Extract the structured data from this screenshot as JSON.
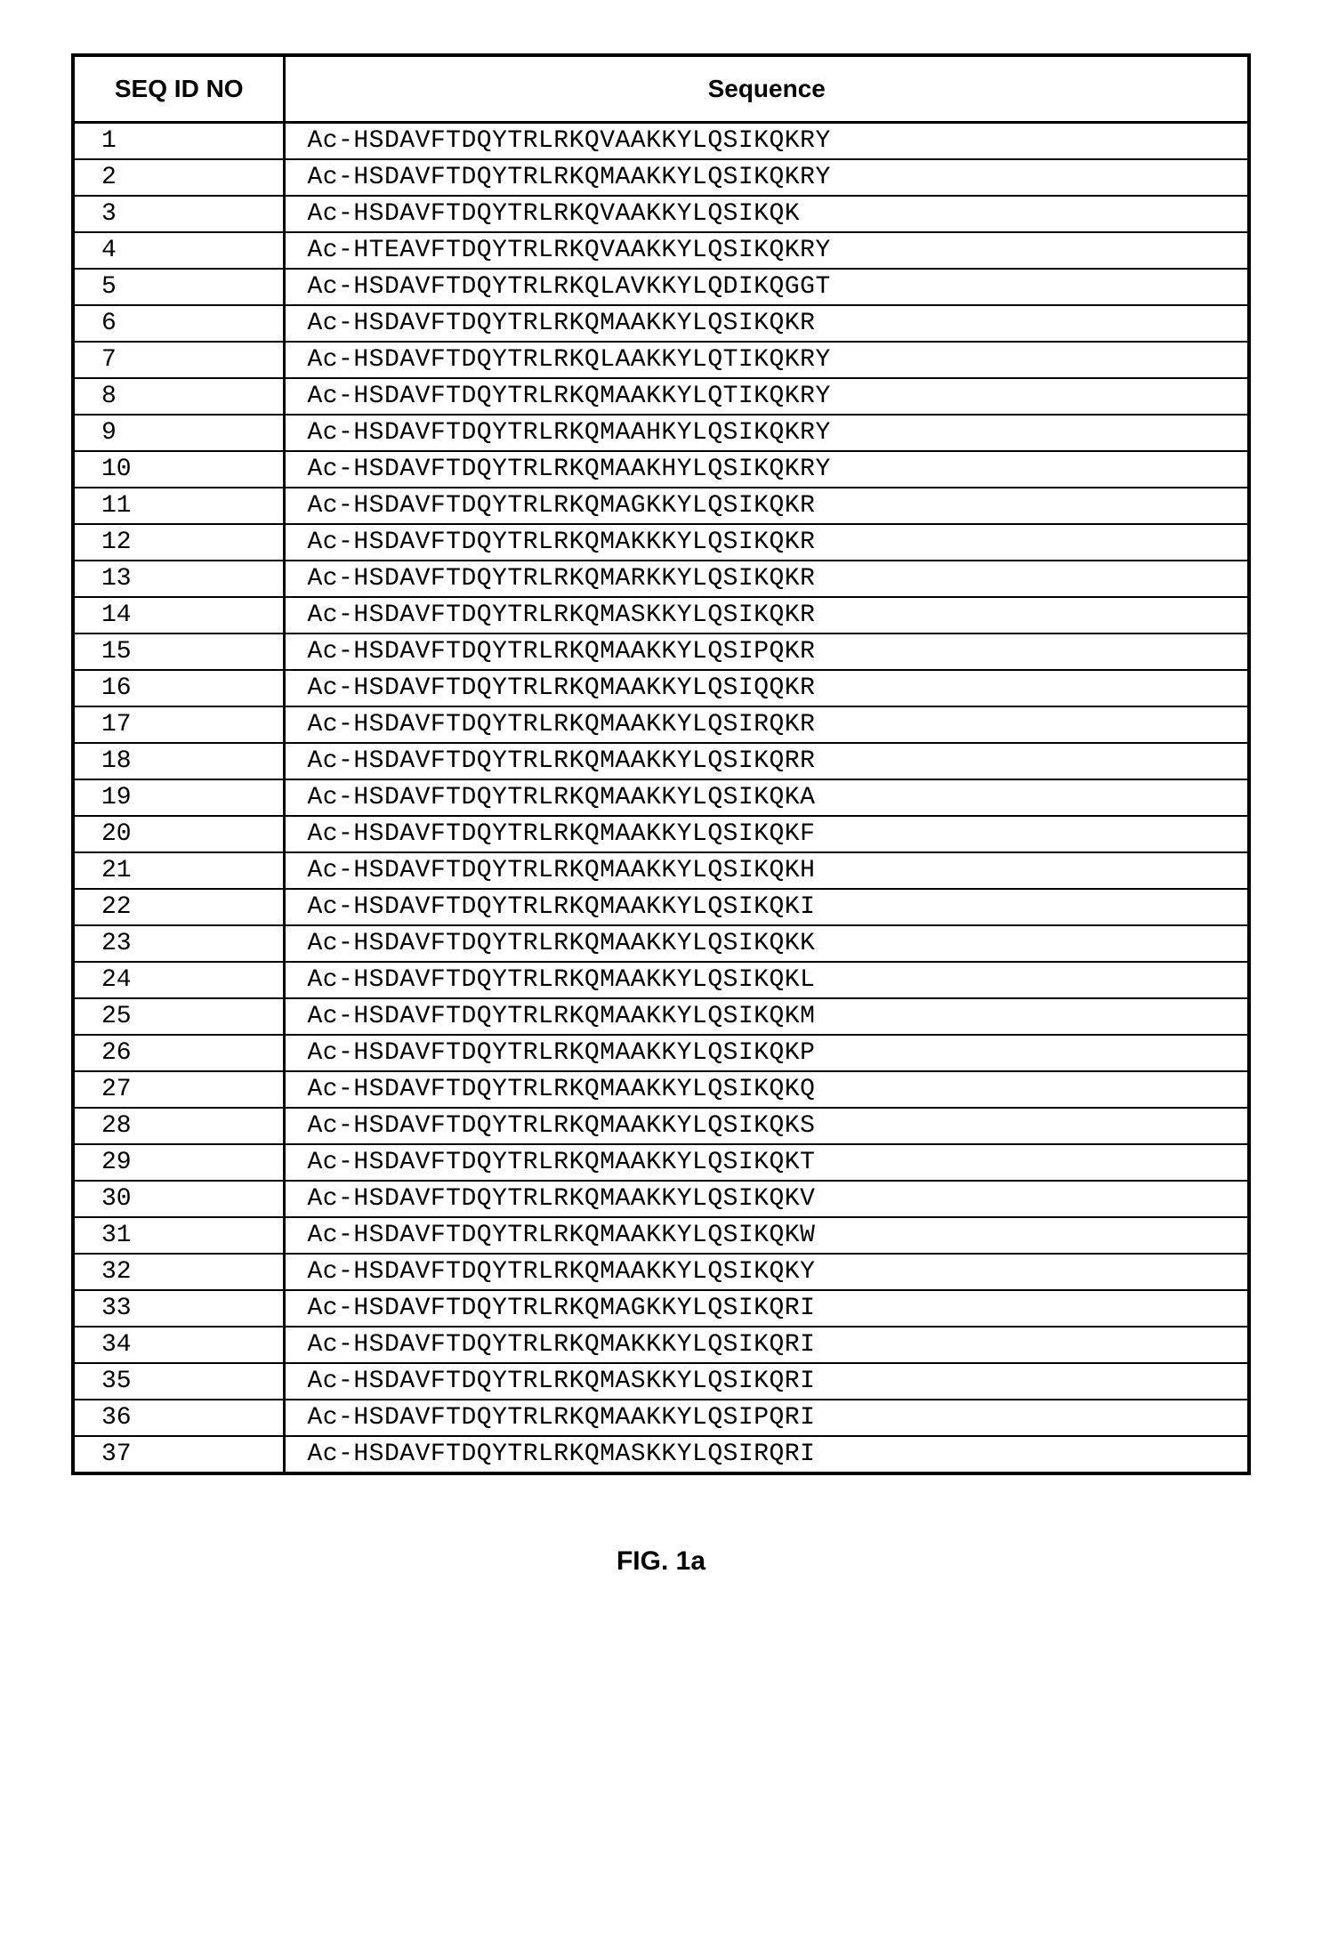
{
  "table": {
    "headers": {
      "seqid": "SEQ ID NO",
      "sequence": "Sequence"
    },
    "rows": [
      {
        "id": "1",
        "seq": "Ac-HSDAVFTDQYTRLRKQVAAKKYLQSIKQKRY"
      },
      {
        "id": "2",
        "seq": "Ac-HSDAVFTDQYTRLRKQMAAKKYLQSIKQKRY"
      },
      {
        "id": "3",
        "seq": "Ac-HSDAVFTDQYTRLRKQVAAKKYLQSIKQK"
      },
      {
        "id": "4",
        "seq": "Ac-HTEAVFTDQYTRLRKQVAAKKYLQSIKQKRY"
      },
      {
        "id": "5",
        "seq": "Ac-HSDAVFTDQYTRLRKQLAVKKYLQDIKQGGT"
      },
      {
        "id": "6",
        "seq": "Ac-HSDAVFTDQYTRLRKQMAAKKYLQSIKQKR"
      },
      {
        "id": "7",
        "seq": "Ac-HSDAVFTDQYTRLRKQLAAKKYLQTIKQKRY"
      },
      {
        "id": "8",
        "seq": "Ac-HSDAVFTDQYTRLRKQMAAKKYLQTIKQKRY"
      },
      {
        "id": "9",
        "seq": "Ac-HSDAVFTDQYTRLRKQMAAHKYLQSIKQKRY"
      },
      {
        "id": "10",
        "seq": "Ac-HSDAVFTDQYTRLRKQMAAKHYLQSIKQKRY"
      },
      {
        "id": "11",
        "seq": "Ac-HSDAVFTDQYTRLRKQMAGKKYLQSIKQKR"
      },
      {
        "id": "12",
        "seq": "Ac-HSDAVFTDQYTRLRKQMAKKKYLQSIKQKR"
      },
      {
        "id": "13",
        "seq": "Ac-HSDAVFTDQYTRLRKQMARKKYLQSIKQKR"
      },
      {
        "id": "14",
        "seq": "Ac-HSDAVFTDQYTRLRKQMASKKYLQSIKQKR"
      },
      {
        "id": "15",
        "seq": "Ac-HSDAVFTDQYTRLRKQMAAKKYLQSIPQKR"
      },
      {
        "id": "16",
        "seq": "Ac-HSDAVFTDQYTRLRKQMAAKKYLQSIQQKR"
      },
      {
        "id": "17",
        "seq": "Ac-HSDAVFTDQYTRLRKQMAAKKYLQSIRQKR"
      },
      {
        "id": "18",
        "seq": "Ac-HSDAVFTDQYTRLRKQMAAKKYLQSIKQRR"
      },
      {
        "id": "19",
        "seq": "Ac-HSDAVFTDQYTRLRKQMAAKKYLQSIKQKA"
      },
      {
        "id": "20",
        "seq": "Ac-HSDAVFTDQYTRLRKQMAAKKYLQSIKQKF"
      },
      {
        "id": "21",
        "seq": "Ac-HSDAVFTDQYTRLRKQMAAKKYLQSIKQKH"
      },
      {
        "id": "22",
        "seq": "Ac-HSDAVFTDQYTRLRKQMAAKKYLQSIKQKI"
      },
      {
        "id": "23",
        "seq": "Ac-HSDAVFTDQYTRLRKQMAAKKYLQSIKQKK"
      },
      {
        "id": "24",
        "seq": "Ac-HSDAVFTDQYTRLRKQMAAKKYLQSIKQKL"
      },
      {
        "id": "25",
        "seq": "Ac-HSDAVFTDQYTRLRKQMAAKKYLQSIKQKM"
      },
      {
        "id": "26",
        "seq": "Ac-HSDAVFTDQYTRLRKQMAAKKYLQSIKQKP"
      },
      {
        "id": "27",
        "seq": "Ac-HSDAVFTDQYTRLRKQMAAKKYLQSIKQKQ"
      },
      {
        "id": "28",
        "seq": "Ac-HSDAVFTDQYTRLRKQMAAKKYLQSIKQKS"
      },
      {
        "id": "29",
        "seq": "Ac-HSDAVFTDQYTRLRKQMAAKKYLQSIKQKT"
      },
      {
        "id": "30",
        "seq": "Ac-HSDAVFTDQYTRLRKQMAAKKYLQSIKQKV"
      },
      {
        "id": "31",
        "seq": "Ac-HSDAVFTDQYTRLRKQMAAKKYLQSIKQKW"
      },
      {
        "id": "32",
        "seq": "Ac-HSDAVFTDQYTRLRKQMAAKKYLQSIKQKY"
      },
      {
        "id": "33",
        "seq": "Ac-HSDAVFTDQYTRLRKQMAGKKYLQSIKQRI"
      },
      {
        "id": "34",
        "seq": "Ac-HSDAVFTDQYTRLRKQMAKKKYLQSIKQRI"
      },
      {
        "id": "35",
        "seq": "Ac-HSDAVFTDQYTRLRKQMASKKYLQSIKQRI"
      },
      {
        "id": "36",
        "seq": "Ac-HSDAVFTDQYTRLRKQMAAKKYLQSIPQRI"
      },
      {
        "id": "37",
        "seq": "Ac-HSDAVFTDQYTRLRKQMASKKYLQSIRQRI"
      }
    ]
  },
  "caption": "FIG. 1a"
}
